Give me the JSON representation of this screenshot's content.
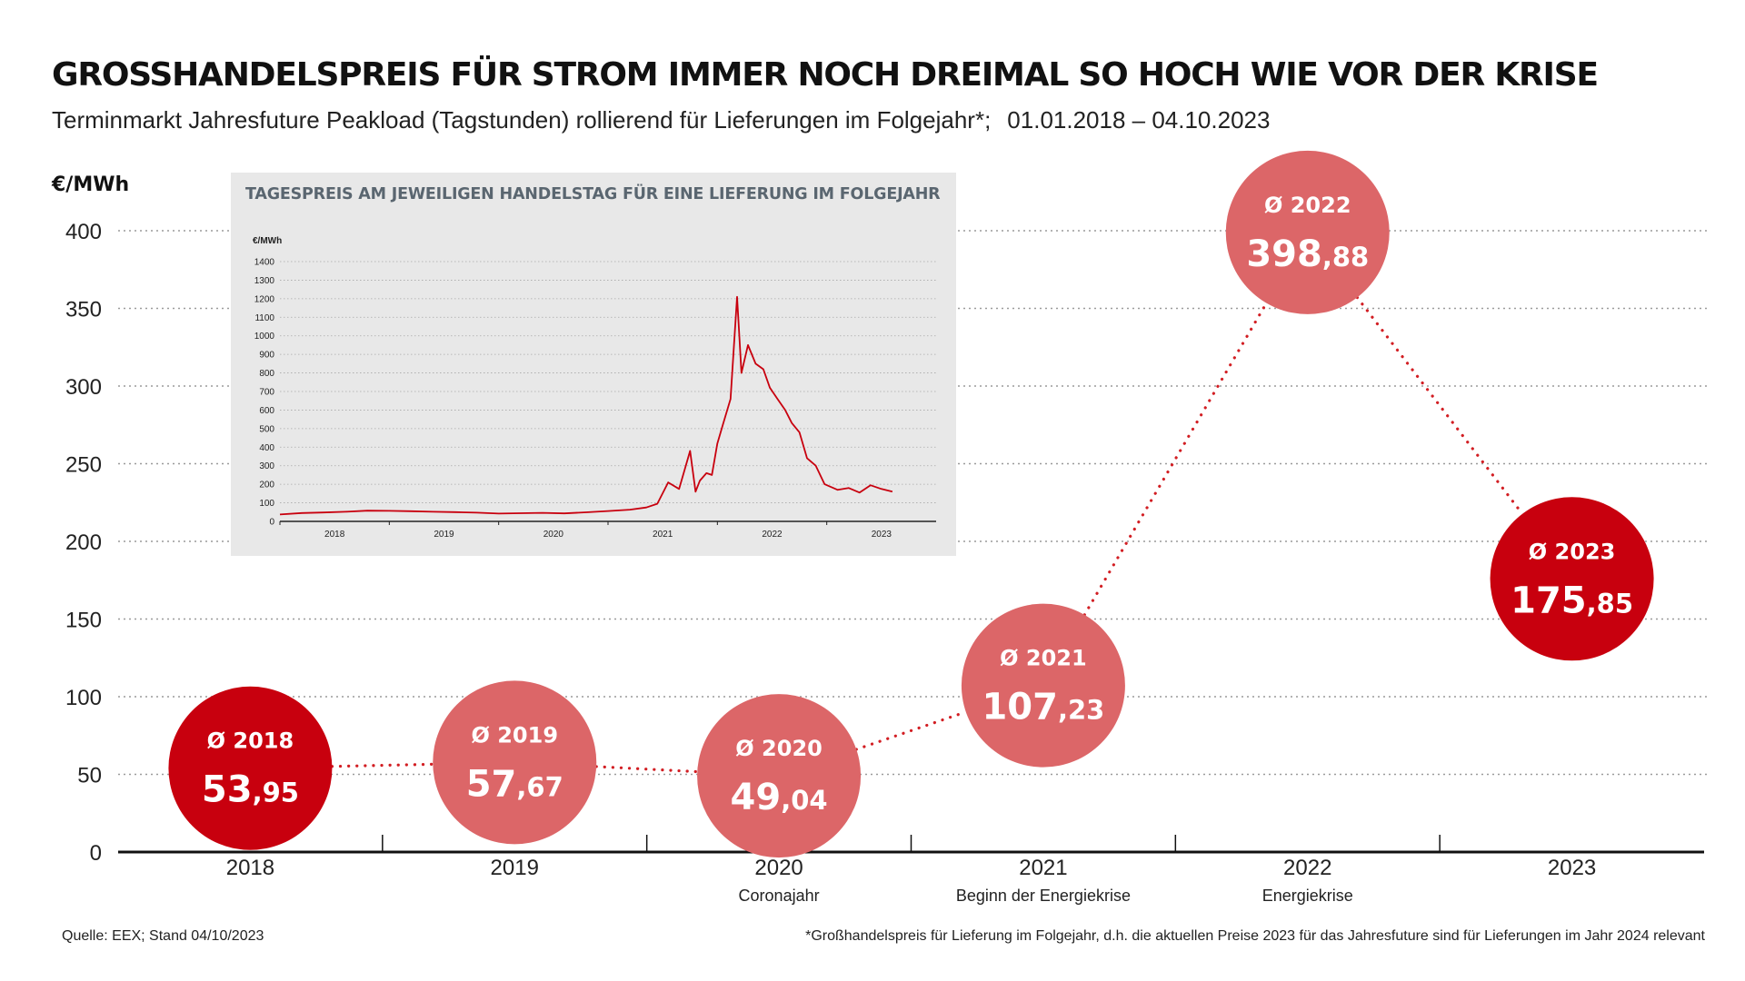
{
  "title": "GROSSHANDELSPREIS FÜR STROM IMMER NOCH DREIMAL SO HOCH WIE VOR DER KRISE",
  "subtitle": {
    "main": "Terminmarkt Jahresfuture Peakload (Tagstunden) rollierend für Lieferungen im Folgejahr*;",
    "period": "01.01.2018 – 04.10.2023"
  },
  "source": "Quelle: EEX; Stand 04/10/2023",
  "footnote": "*Großhandelspreis für Lieferung im Folgejahr, d.h. die aktuellen Preise 2023 für das Jahresfuture sind für Lieferungen im Jahr 2024 relevant",
  "colors": {
    "dark_red": "#c8000e",
    "light_red": "#dc6668",
    "connector": "#d21e23",
    "grid": "#9a9a9a",
    "axis": "#111111",
    "inset_bg": "#e8e8e8",
    "inset_line": "#c8000e",
    "inset_title": "#5a6670"
  },
  "chart_data": [
    {
      "type": "scatter",
      "ylabel": "€/MWh",
      "ylim": [
        0,
        400
      ],
      "yticks": [
        0,
        50,
        100,
        150,
        200,
        250,
        300,
        350,
        400
      ],
      "grid": true,
      "categories": [
        "2018",
        "2019",
        "2020",
        "2021",
        "2022",
        "2023"
      ],
      "category_notes": [
        "",
        "",
        "Coronajahr",
        "Beginn der Energiekrise",
        "Energiekrise",
        ""
      ],
      "bubble_prefix": "Ø",
      "series": [
        {
          "values": [
            53.95,
            57.67,
            49.04,
            107.23,
            398.88,
            175.85
          ],
          "value_labels": [
            {
              "int": "53",
              "dec": ",95"
            },
            {
              "int": "57",
              "dec": ",67"
            },
            {
              "int": "49",
              "dec": ",04"
            },
            {
              "int": "107",
              "dec": ",23"
            },
            {
              "int": "398",
              "dec": ",88"
            },
            {
              "int": "175",
              "dec": ",85"
            }
          ],
          "colors": [
            "dark_red",
            "light_red",
            "light_red",
            "light_red",
            "light_red",
            "dark_red"
          ]
        }
      ]
    },
    {
      "type": "line",
      "title": "TAGESPREIS AM JEWEILIGEN HANDELSTAG FÜR EINE LIEFERUNG IM FOLGEJAHR",
      "ylabel": "€/MWh",
      "ylim": [
        0,
        1400
      ],
      "yticks": [
        0,
        100,
        200,
        300,
        400,
        500,
        600,
        700,
        800,
        900,
        1000,
        1100,
        1200,
        1300,
        1400
      ],
      "grid": true,
      "xlim": [
        2018,
        2024
      ],
      "xticks": [
        "2018",
        "2019",
        "2020",
        "2021",
        "2022",
        "2023"
      ],
      "x": [
        2018.0,
        2018.2,
        2018.4,
        2018.6,
        2018.8,
        2019.0,
        2019.2,
        2019.4,
        2019.6,
        2019.8,
        2020.0,
        2020.2,
        2020.4,
        2020.6,
        2020.8,
        2021.0,
        2021.2,
        2021.35,
        2021.45,
        2021.55,
        2021.65,
        2021.75,
        2021.8,
        2021.84,
        2021.9,
        2021.95,
        2022.0,
        2022.05,
        2022.12,
        2022.18,
        2022.22,
        2022.28,
        2022.35,
        2022.42,
        2022.48,
        2022.55,
        2022.62,
        2022.68,
        2022.75,
        2022.82,
        2022.9,
        2022.98,
        2023.1,
        2023.2,
        2023.3,
        2023.4,
        2023.5,
        2023.6
      ],
      "y": [
        37,
        45,
        48,
        52,
        58,
        57,
        55,
        52,
        50,
        47,
        42,
        44,
        46,
        43,
        49,
        56,
        63,
        75,
        95,
        210,
        175,
        380,
        160,
        220,
        260,
        250,
        420,
        520,
        660,
        1210,
        800,
        950,
        850,
        820,
        720,
        660,
        600,
        530,
        480,
        340,
        300,
        200,
        170,
        180,
        155,
        195,
        175,
        160
      ]
    }
  ]
}
